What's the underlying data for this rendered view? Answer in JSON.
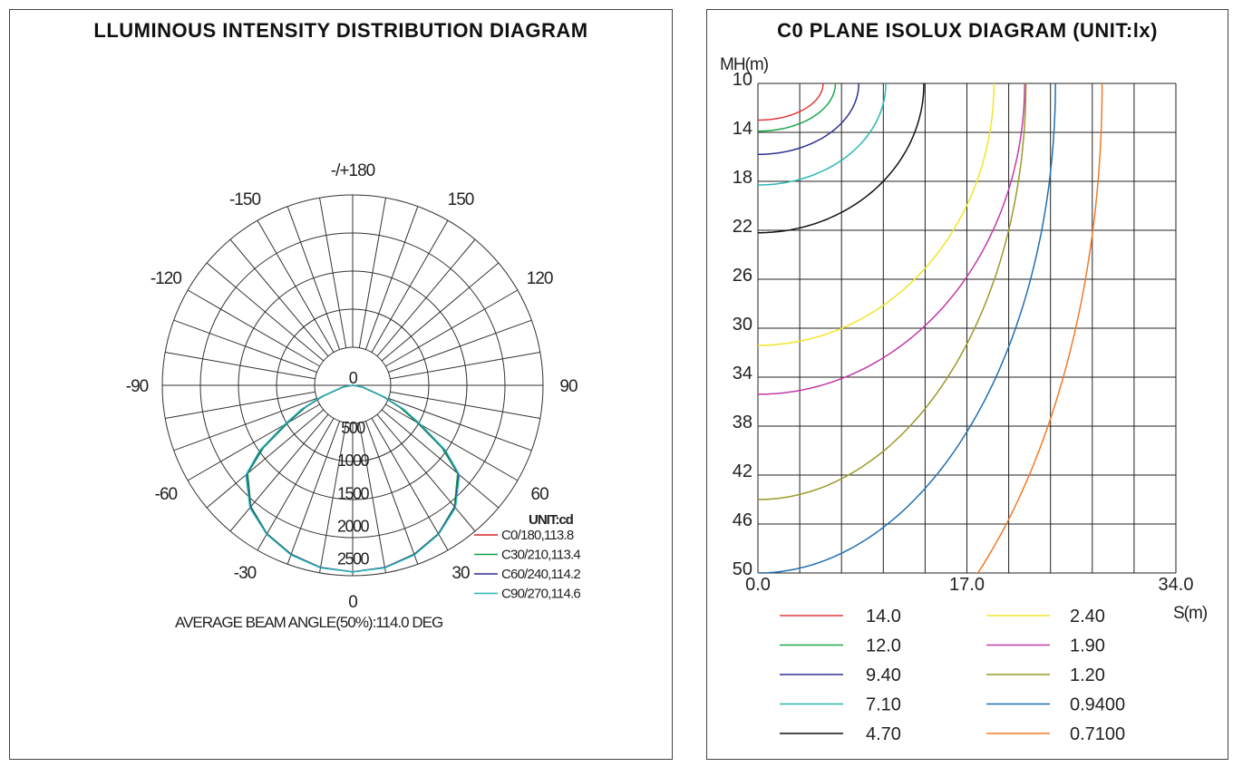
{
  "polar": {
    "title": "LLUMINOUS INTENSITY DISTRIBUTION DIAGRAM",
    "angle_labels": [
      {
        "text": "-/+180",
        "angle": 180
      },
      {
        "text": "150",
        "angle": 150
      },
      {
        "text": "-150",
        "angle": -150
      },
      {
        "text": "120",
        "angle": 120
      },
      {
        "text": "-120",
        "angle": -120
      },
      {
        "text": "90",
        "angle": 90
      },
      {
        "text": "-90",
        "angle": -90
      },
      {
        "text": "60",
        "angle": 60
      },
      {
        "text": "-60",
        "angle": -60
      },
      {
        "text": "30",
        "angle": 30
      },
      {
        "text": "-30",
        "angle": -30
      },
      {
        "text": "0",
        "angle": 0
      }
    ],
    "radial_labels": [
      "0",
      "500",
      "1000",
      "1500",
      "2000",
      "2500"
    ],
    "unit_label": "UNIT:cd",
    "legend": [
      {
        "label": "C0/180,113.8",
        "color": "#d9232a"
      },
      {
        "label": "C30/210,113.4",
        "color": "#14a050"
      },
      {
        "label": "C60/240,114.2",
        "color": "#2b2f8e"
      },
      {
        "label": "C90/270,114.6",
        "color": "#2ab5b5"
      }
    ],
    "beam_angle_text": "AVERAGE BEAM ANGLE(50%):114.0 DEG"
  },
  "isolux": {
    "title": "C0 PLANE ISOLUX DIAGRAM (UNIT:lx)",
    "y_axis_label": "MH(m)",
    "x_axis_label": "S(m)",
    "y_ticks": [
      "10",
      "14",
      "18",
      "22",
      "26",
      "30",
      "34",
      "38",
      "42",
      "46",
      "50"
    ],
    "x_ticks": [
      "0.0",
      "17.0",
      "34.0"
    ],
    "legend": [
      {
        "label": "14.0",
        "color": "#e23a3a"
      },
      {
        "label": "12.0",
        "color": "#1aa84a"
      },
      {
        "label": "9.40",
        "color": "#2e3192"
      },
      {
        "label": "7.10",
        "color": "#2ab7b0"
      },
      {
        "label": "4.70",
        "color": "#111111"
      },
      {
        "label": "2.40",
        "color": "#f2e52a"
      },
      {
        "label": "1.90",
        "color": "#c23aa8"
      },
      {
        "label": "1.20",
        "color": "#9a9a2a"
      },
      {
        "label": "0.9400",
        "color": "#1f6fb2"
      },
      {
        "label": "0.7100",
        "color": "#f07a2a"
      }
    ]
  },
  "chart_data": [
    {
      "type": "polar",
      "title": "LLUMINOUS INTENSITY DISTRIBUTION DIAGRAM",
      "unit": "cd",
      "r_ticks": [
        0,
        500,
        1000,
        1500,
        2000,
        2500
      ],
      "r_max": 2500,
      "angle_ticks": [
        180,
        150,
        -150,
        120,
        -120,
        90,
        -90,
        60,
        -60,
        30,
        -30,
        0
      ],
      "series": [
        {
          "name": "C0/180,113.8",
          "angles": [
            0,
            10,
            20,
            30,
            40,
            50,
            55,
            60,
            65,
            70,
            80,
            90
          ],
          "values": [
            2450,
            2430,
            2360,
            2250,
            2080,
            1800,
            1450,
            1000,
            700,
            420,
            130,
            0
          ]
        },
        {
          "name": "C30/210,113.4",
          "angles": [
            0,
            10,
            20,
            30,
            40,
            50,
            55,
            60,
            65,
            70,
            80,
            90
          ],
          "values": [
            2450,
            2430,
            2360,
            2250,
            2080,
            1800,
            1430,
            980,
            680,
            410,
            125,
            0
          ]
        },
        {
          "name": "C60/240,114.2",
          "angles": [
            0,
            10,
            20,
            30,
            40,
            50,
            55,
            60,
            65,
            70,
            80,
            90
          ],
          "values": [
            2450,
            2430,
            2365,
            2255,
            2090,
            1820,
            1470,
            1020,
            720,
            430,
            135,
            0
          ]
        },
        {
          "name": "C90/270,114.6",
          "angles": [
            0,
            10,
            20,
            30,
            40,
            50,
            55,
            60,
            65,
            70,
            80,
            90
          ],
          "values": [
            2450,
            2435,
            2370,
            2260,
            2100,
            1830,
            1490,
            1040,
            740,
            440,
            140,
            0
          ]
        }
      ],
      "beam_angle": 114.0
    },
    {
      "type": "line",
      "title": "C0 PLANE ISOLUX DIAGRAM (UNIT:lx)",
      "xlabel": "S(m)",
      "ylabel": "MH(m)",
      "xlim": [
        0,
        34
      ],
      "ylim": [
        10,
        50
      ],
      "x_ticks": [
        0,
        17,
        34
      ],
      "y_ticks": [
        10,
        14,
        18,
        22,
        26,
        30,
        34,
        38,
        42,
        46,
        50
      ],
      "series": [
        {
          "name": "14.0",
          "a": 5.3,
          "c": 13.0
        },
        {
          "name": "12.0",
          "a": 6.3,
          "c": 13.9
        },
        {
          "name": "9.40",
          "a": 8.2,
          "c": 15.8
        },
        {
          "name": "7.10",
          "a": 10.4,
          "c": 18.3
        },
        {
          "name": "4.70",
          "a": 13.5,
          "c": 22.2
        },
        {
          "name": "2.40",
          "a": 19.2,
          "c": 31.4
        },
        {
          "name": "1.90",
          "a": 21.7,
          "c": 35.4
        },
        {
          "name": "1.20",
          "a": 21.8,
          "c": 44.0
        },
        {
          "name": "0.9400",
          "a": 24.2,
          "c": 50.0
        },
        {
          "name": "0.7100",
          "a": 28.0,
          "c": 62.0
        }
      ]
    }
  ]
}
